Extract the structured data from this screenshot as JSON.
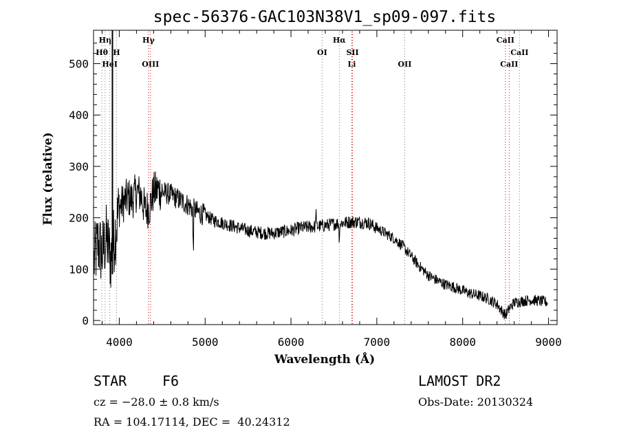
{
  "chart_data": {
    "type": "line",
    "title": "spec-56376-GAC103N38V1_sp09-097.fits",
    "xlabel": "Wavelength (Å)",
    "ylabel": "Flux (relative)",
    "xlim": [
      3700,
      9100
    ],
    "ylim": [
      -8,
      565
    ],
    "xticks": [
      4000,
      5000,
      6000,
      7000,
      8000,
      9000
    ],
    "yticks": [
      0,
      100,
      200,
      300,
      400,
      500
    ],
    "grid": false,
    "series": [
      {
        "x": [
          3700,
          3750,
          3800,
          3850,
          3900,
          3950,
          4000,
          4050,
          4100,
          4150,
          4200,
          4250,
          4300,
          4350,
          4400,
          4450,
          4500,
          4600,
          4700,
          4800,
          4900,
          5000,
          5100,
          5200,
          5300,
          5400,
          5500,
          5600,
          5700,
          5800,
          5900,
          6000,
          6100,
          6200,
          6300,
          6400,
          6500,
          6600,
          6700,
          6800,
          6900,
          7000,
          7100,
          7200,
          7300,
          7400,
          7500,
          7600,
          7700,
          7800,
          7900,
          8000,
          8100,
          8200,
          8300,
          8400,
          8450,
          8500,
          8550,
          8600,
          8700,
          8800,
          8900,
          9000
        ],
        "y": [
          110,
          150,
          130,
          160,
          120,
          170,
          220,
          230,
          240,
          235,
          250,
          245,
          215,
          220,
          250,
          255,
          250,
          245,
          235,
          225,
          212,
          205,
          195,
          190,
          185,
          180,
          175,
          172,
          170,
          170,
          173,
          175,
          180,
          182,
          183,
          185,
          188,
          190,
          192,
          192,
          190,
          180,
          170,
          160,
          145,
          125,
          105,
          88,
          78,
          70,
          65,
          58,
          52,
          48,
          42,
          32,
          20,
          10,
          25,
          35,
          38,
          40,
          38,
          35
        ]
      }
    ],
    "spectral_lines": [
      {
        "label": "Hη",
        "wavelength": 3835,
        "row": 0,
        "color": "#777777"
      },
      {
        "label": "Hθ",
        "wavelength": 3797,
        "row": 1,
        "color": "#777777"
      },
      {
        "label": "H",
        "wavelength": 3968,
        "row": 1,
        "color": "#777777"
      },
      {
        "label": "HeI",
        "wavelength": 3889,
        "row": 2,
        "color": "#777777"
      },
      {
        "label": "Hγ",
        "wavelength": 4340,
        "row": 0,
        "color": "#cc0000"
      },
      {
        "label": "OIII",
        "wavelength": 4363,
        "row": 2,
        "color": "#cc0000"
      },
      {
        "label": "OI",
        "wavelength": 6363,
        "row": 1,
        "color": "#777777"
      },
      {
        "label": "Hα",
        "wavelength": 6563,
        "row": 0,
        "color": "#777777"
      },
      {
        "label": "SII",
        "wavelength": 6717,
        "row": 1,
        "color": "#cc0000"
      },
      {
        "label": "Li",
        "wavelength": 6708,
        "row": 2,
        "color": "#cc0000"
      },
      {
        "label": "OII",
        "wavelength": 7325,
        "row": 2,
        "color": "#777777"
      },
      {
        "label": "CaII",
        "wavelength": 8498,
        "row": 0,
        "color": "#cc0000"
      },
      {
        "label": "CaII",
        "wavelength": 8662,
        "row": 1,
        "color": "#777777"
      },
      {
        "label": "CaII",
        "wavelength": 8542,
        "row": 2,
        "color": "#cc0000"
      }
    ]
  },
  "footer": {
    "object_type": "STAR",
    "subclass": "F6",
    "survey": "LAMOST DR2",
    "redshift": "cz = −28.0 ± 0.8 km/s",
    "obs_date": "Obs-Date: 20130324",
    "coords": "RA = 104.17114, DEC =  40.24312"
  },
  "colors": {
    "line_red": "#cc0000",
    "line_gray": "#777777",
    "spectrum": "#000000"
  }
}
